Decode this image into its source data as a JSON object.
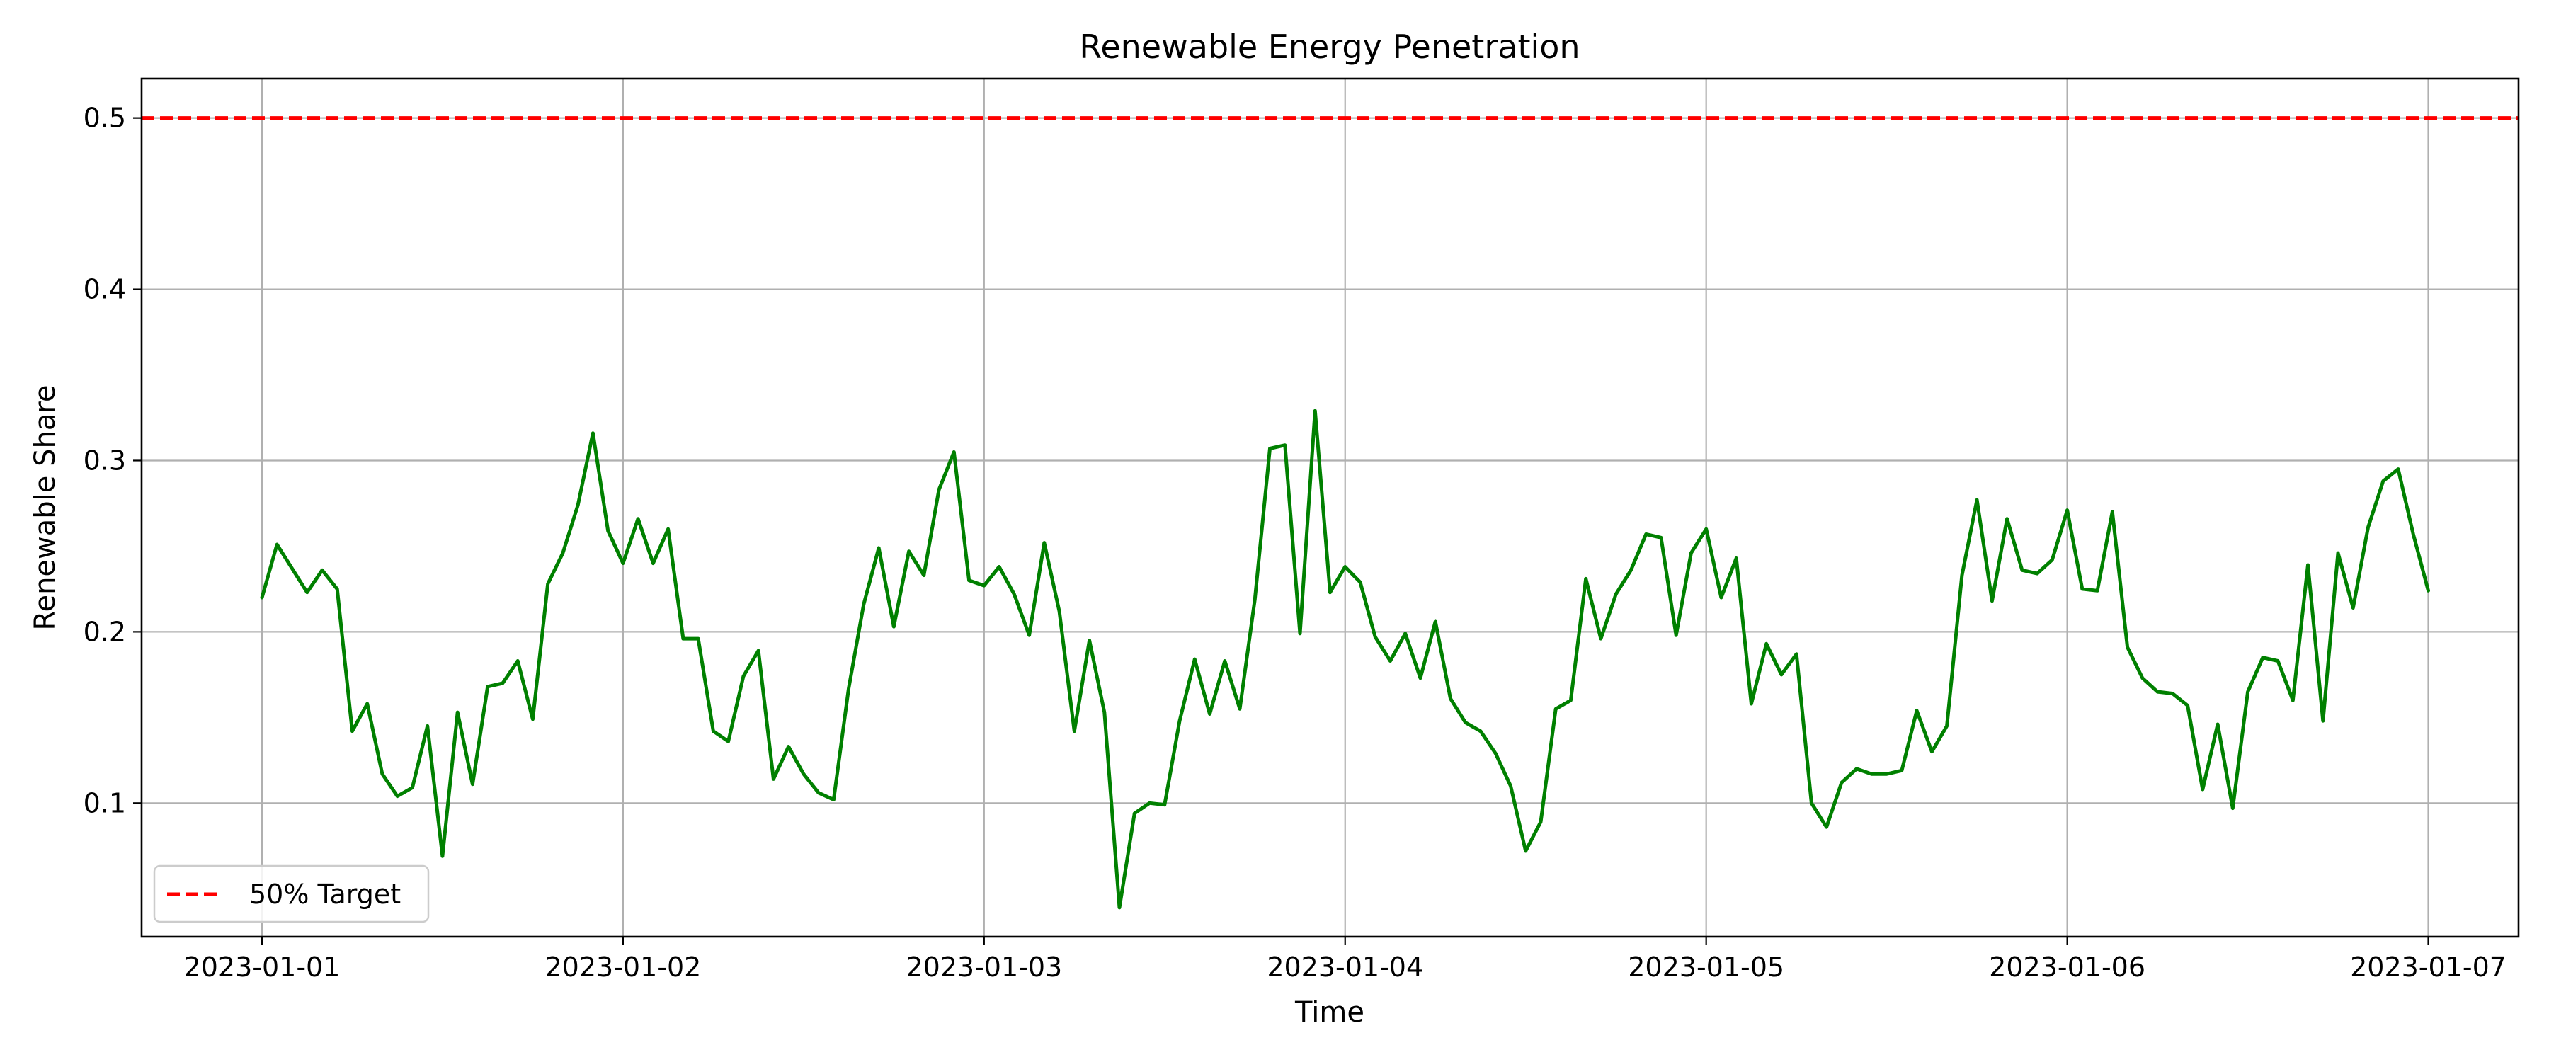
{
  "chart_data": {
    "type": "line",
    "title": "Renewable Energy Penetration",
    "xlabel": "Time",
    "ylabel": "Renewable Share",
    "x_ticks": [
      "2023-01-01",
      "2023-01-02",
      "2023-01-03",
      "2023-01-04",
      "2023-01-05",
      "2023-01-06",
      "2023-01-07"
    ],
    "y_ticks": [
      "0.1",
      "0.2",
      "0.3",
      "0.4",
      "0.5"
    ],
    "xlim": [
      "2022-12-31T16:00",
      "2023-01-07T06:00"
    ],
    "ylim": [
      0.022,
      0.523
    ],
    "grid": true,
    "legend_position": "lower-left",
    "series": [
      {
        "color": "#008000",
        "x_start": "2023-01-01T00:00",
        "x_step_hours": 1,
        "values": [
          0.22,
          0.251,
          0.237,
          0.223,
          0.236,
          0.225,
          0.142,
          0.158,
          0.117,
          0.104,
          0.109,
          0.145,
          0.069,
          0.153,
          0.111,
          0.168,
          0.17,
          0.183,
          0.149,
          0.228,
          0.246,
          0.274,
          0.316,
          0.259,
          0.24,
          0.266,
          0.24,
          0.26,
          0.196,
          0.196,
          0.142,
          0.136,
          0.174,
          0.189,
          0.114,
          0.133,
          0.117,
          0.106,
          0.102,
          0.167,
          0.216,
          0.249,
          0.203,
          0.247,
          0.233,
          0.283,
          0.305,
          0.23,
          0.227,
          0.238,
          0.222,
          0.198,
          0.252,
          0.212,
          0.142,
          0.195,
          0.153,
          0.039,
          0.094,
          0.1,
          0.099,
          0.148,
          0.184,
          0.152,
          0.183,
          0.155,
          0.219,
          0.307,
          0.309,
          0.199,
          0.329,
          0.223,
          0.238,
          0.229,
          0.197,
          0.183,
          0.199,
          0.173,
          0.206,
          0.161,
          0.147,
          0.142,
          0.129,
          0.11,
          0.072,
          0.089,
          0.155,
          0.16,
          0.231,
          0.196,
          0.222,
          0.236,
          0.257,
          0.255,
          0.198,
          0.246,
          0.26,
          0.22,
          0.243,
          0.158,
          0.193,
          0.175,
          0.187,
          0.1,
          0.086,
          0.112,
          0.12,
          0.117,
          0.117,
          0.119,
          0.154,
          0.13,
          0.145,
          0.233,
          0.277,
          0.218,
          0.266,
          0.236,
          0.234,
          0.242,
          0.271,
          0.225,
          0.224,
          0.27,
          0.191,
          0.173,
          0.165,
          0.164,
          0.157,
          0.108,
          0.146,
          0.097,
          0.165,
          0.185,
          0.183,
          0.16,
          0.239,
          0.148,
          0.246,
          0.214,
          0.261,
          0.288,
          0.295,
          0.257,
          0.224
        ]
      }
    ],
    "reference_lines": [
      {
        "name": "50% Target",
        "y": 0.5,
        "color": "#ff0000",
        "style": "dashed"
      }
    ]
  }
}
